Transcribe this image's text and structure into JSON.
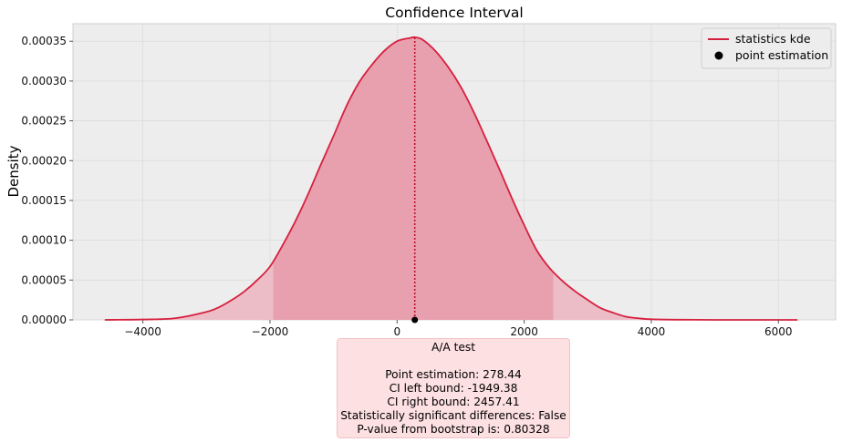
{
  "chart_data": {
    "type": "area",
    "title": "Confidence Interval",
    "xlabel": "",
    "ylabel": "Density",
    "xlim": [
      -5100,
      6900
    ],
    "ylim": [
      0,
      0.000372
    ],
    "grid": true,
    "legend_position": "top-right",
    "x_ticks": [
      -4000,
      -2000,
      0,
      2000,
      4000,
      6000
    ],
    "x_tick_labels": [
      "−4000",
      "−2000",
      "0",
      "2000",
      "4000",
      "6000"
    ],
    "y_ticks": [
      0,
      5e-05,
      0.0001,
      0.00015,
      0.0002,
      0.00025,
      0.0003,
      0.00035
    ],
    "y_tick_labels": [
      "0.00000",
      "0.00005",
      "0.00010",
      "0.00015",
      "0.00020",
      "0.00025",
      "0.00030",
      "0.00035"
    ],
    "series": [
      {
        "name": "statistics kde",
        "kind": "line",
        "color": "#d6203f",
        "x": [
          -4600,
          -4000,
          -3500,
          -3000,
          -2800,
          -2600,
          -2400,
          -2200,
          -2000,
          -1800,
          -1600,
          -1400,
          -1200,
          -1000,
          -800,
          -600,
          -400,
          -200,
          0,
          200,
          278.44,
          400,
          600,
          800,
          1000,
          1200,
          1400,
          1600,
          1800,
          2000,
          2200,
          2400,
          2600,
          2800,
          3000,
          3200,
          3400,
          3600,
          3800,
          4000,
          4500,
          5000,
          5500,
          6300
        ],
        "y": [
          0.0,
          5e-07,
          2e-06,
          1e-05,
          1.6e-05,
          2.5e-05,
          3.6e-05,
          5e-05,
          6.7e-05,
          9.4e-05,
          0.000124,
          0.000158,
          0.000195,
          0.000231,
          0.000268,
          0.000298,
          0.00032,
          0.000338,
          0.00035,
          0.000354,
          0.000355,
          0.000352,
          0.000338,
          0.000318,
          0.000293,
          0.000262,
          0.000227,
          0.000191,
          0.000154,
          0.000119,
          8.7e-05,
          6.5e-05,
          4.9e-05,
          3.6e-05,
          2.5e-05,
          1.5e-05,
          9e-06,
          4e-06,
          2e-06,
          8e-07,
          2e-07,
          0.0,
          0.0,
          0.0
        ]
      },
      {
        "name": "point estimation",
        "kind": "point",
        "color": "#000000",
        "x": [
          278.44
        ],
        "y": [
          0
        ]
      }
    ],
    "ci_lower": -1949.38,
    "ci_upper": 2457.41,
    "point_estimate": 278.44,
    "colors": {
      "plot_background": "#ededed",
      "ci_fill": "#e8a0ae",
      "tail_fill": "#ecbdc7",
      "curve": "#d6203f",
      "point_line": "#c0102c"
    }
  },
  "stats_box": {
    "heading": "A/A test",
    "point_estimation": "Point estimation: 278.44",
    "ci_left": "CI left bound: -1949.38",
    "ci_right": "CI right bound: 2457.41",
    "significance": "Statistically significant differences: False",
    "p_value": "P-value from bootstrap is: 0.80328"
  }
}
